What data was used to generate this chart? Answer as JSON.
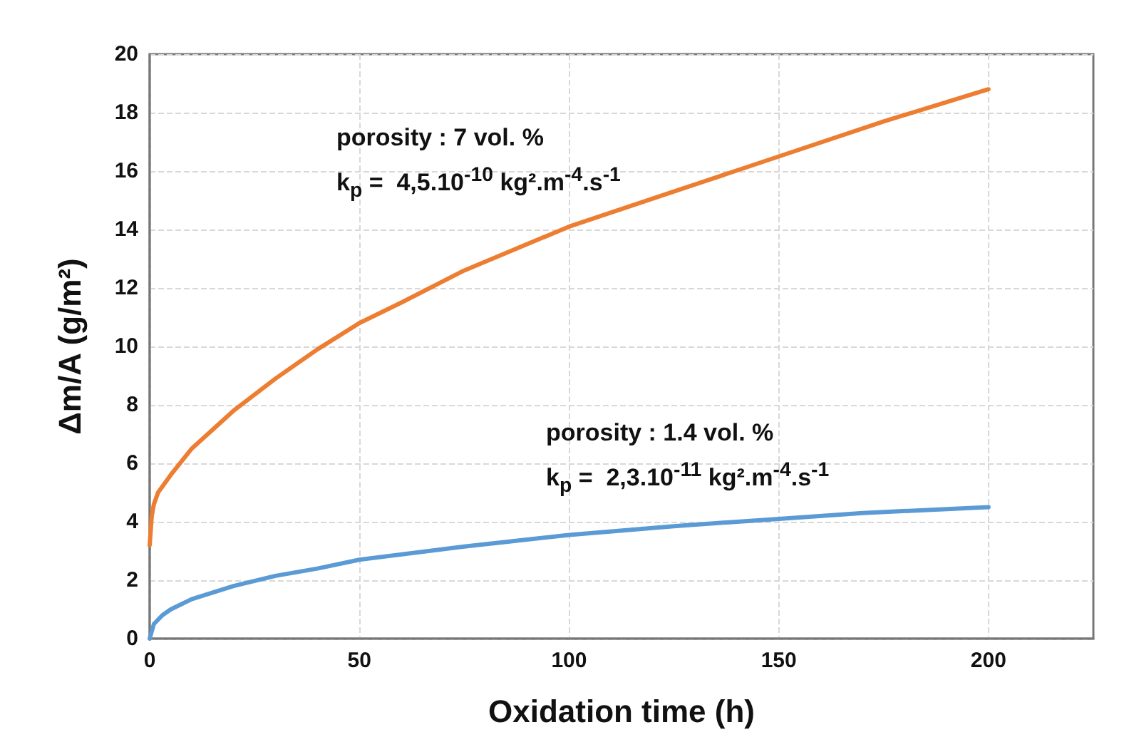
{
  "chart_data": {
    "type": "line",
    "xlabel": "Oxidation time (h)",
    "ylabel": "Δm/A (g/m²)",
    "xlim": [
      0,
      225
    ],
    "xticks": [
      0,
      50,
      100,
      150,
      200
    ],
    "ylim": [
      0,
      20
    ],
    "yticks": [
      0,
      2,
      4,
      6,
      8,
      10,
      12,
      14,
      16,
      18,
      20
    ],
    "grid": true,
    "marker": "none",
    "line_style": "solid",
    "series": [
      {
        "color": "#ed7d31",
        "x": [
          0,
          0.5,
          1,
          2,
          5,
          10,
          20,
          30,
          40,
          50,
          60,
          75,
          100,
          125,
          150,
          175,
          200
        ],
        "values": [
          3.2,
          4.2,
          4.6,
          5.0,
          5.6,
          6.5,
          7.8,
          8.9,
          9.9,
          10.8,
          11.5,
          12.6,
          14.1,
          15.3,
          16.5,
          17.7,
          18.8
        ]
      },
      {
        "color": "#5b9bd5",
        "x": [
          0,
          1,
          3,
          5,
          10,
          20,
          30,
          40,
          50,
          75,
          100,
          125,
          150,
          170,
          200
        ],
        "values": [
          0,
          0.5,
          0.8,
          1.0,
          1.35,
          1.8,
          2.15,
          2.4,
          2.7,
          3.15,
          3.55,
          3.85,
          4.1,
          4.3,
          4.5
        ]
      }
    ],
    "annotations": [
      "porosity : 7 vol. %",
      "k$_{p}$ =  4,5.10$^{-10}$ kg².m$^{-4}$.s$^{-1}$",
      "porosity : 1.4 vol. %",
      "k$_{p}$ =  2,3.10$^{-11}$ kg².m$^{-4}$.s$^{-1}$"
    ]
  }
}
